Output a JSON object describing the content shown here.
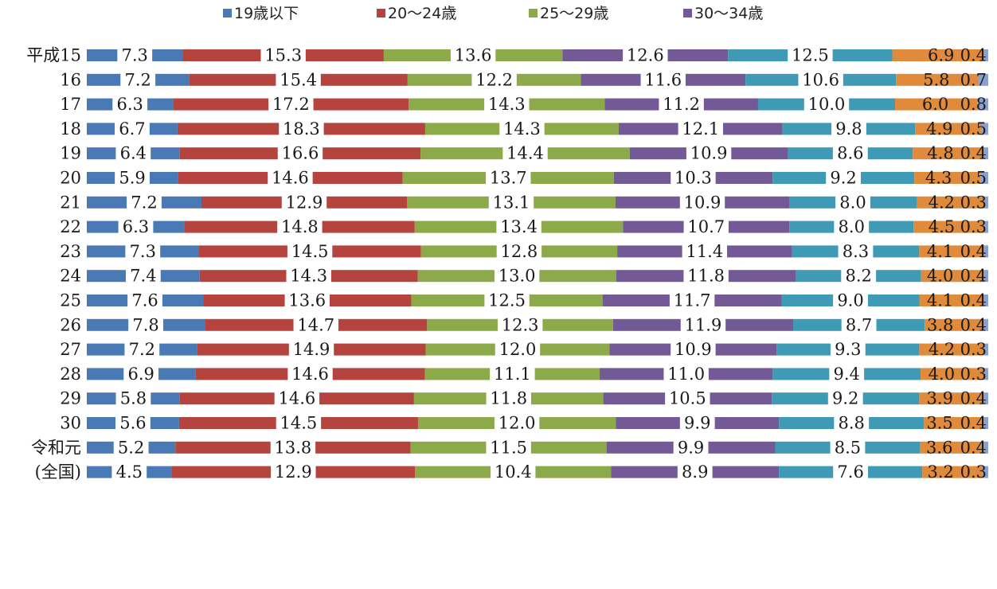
{
  "chart_data": {
    "type": "bar",
    "stacked": true,
    "normalized": true,
    "legend_position": "top",
    "grid": false,
    "title": "",
    "xlabel": "",
    "ylabel": "",
    "categories": [
      "平成15",
      "16",
      "17",
      "18",
      "19",
      "20",
      "21",
      "22",
      "23",
      "24",
      "25",
      "26",
      "27",
      "28",
      "29",
      "30",
      "令和元",
      "(全国)"
    ],
    "series": [
      {
        "name": "19歳以下",
        "color": "#4a7ab5",
        "values": [
          7.3,
          7.2,
          6.3,
          6.7,
          6.4,
          5.9,
          7.2,
          6.3,
          7.3,
          7.4,
          7.6,
          7.8,
          7.2,
          6.9,
          5.8,
          5.6,
          5.2,
          4.5
        ]
      },
      {
        "name": "20～24歳",
        "color": "#b5443f",
        "values": [
          15.3,
          15.4,
          17.2,
          18.3,
          16.6,
          14.6,
          12.9,
          14.8,
          14.5,
          14.3,
          13.6,
          14.7,
          14.9,
          14.6,
          14.6,
          14.5,
          13.8,
          12.9
        ]
      },
      {
        "name": "25～29歳",
        "color": "#8caa4a",
        "values": [
          13.6,
          12.2,
          14.3,
          14.3,
          14.4,
          13.7,
          13.1,
          13.4,
          12.8,
          13.0,
          12.5,
          12.3,
          12.0,
          11.1,
          11.8,
          12.0,
          11.5,
          10.4
        ]
      },
      {
        "name": "30～34歳",
        "color": "#735a96",
        "values": [
          12.6,
          11.6,
          11.2,
          12.1,
          10.9,
          10.3,
          10.9,
          10.7,
          11.4,
          11.8,
          11.7,
          11.9,
          10.9,
          11.0,
          10.5,
          9.9,
          9.9,
          8.9
        ]
      },
      {
        "name": "",
        "color": "#3f9bb5",
        "values": [
          12.5,
          10.6,
          10.0,
          9.8,
          8.6,
          9.2,
          8.0,
          8.0,
          8.3,
          8.2,
          9.0,
          8.7,
          9.3,
          9.4,
          9.2,
          8.8,
          8.5,
          7.6
        ]
      },
      {
        "name": "",
        "color": "#e08a3c",
        "values": [
          6.9,
          5.8,
          6.0,
          4.9,
          4.8,
          4.3,
          4.2,
          4.5,
          4.1,
          4.0,
          4.1,
          3.8,
          4.2,
          4.0,
          3.9,
          3.5,
          3.6,
          3.2
        ]
      },
      {
        "name": "",
        "color": "#8aa0cf",
        "values": [
          0.4,
          0.7,
          0.8,
          0.5,
          0.4,
          0.5,
          0.3,
          0.3,
          0.4,
          0.4,
          0.4,
          0.4,
          0.3,
          0.3,
          0.4,
          0.4,
          0.4,
          0.3
        ]
      }
    ]
  }
}
